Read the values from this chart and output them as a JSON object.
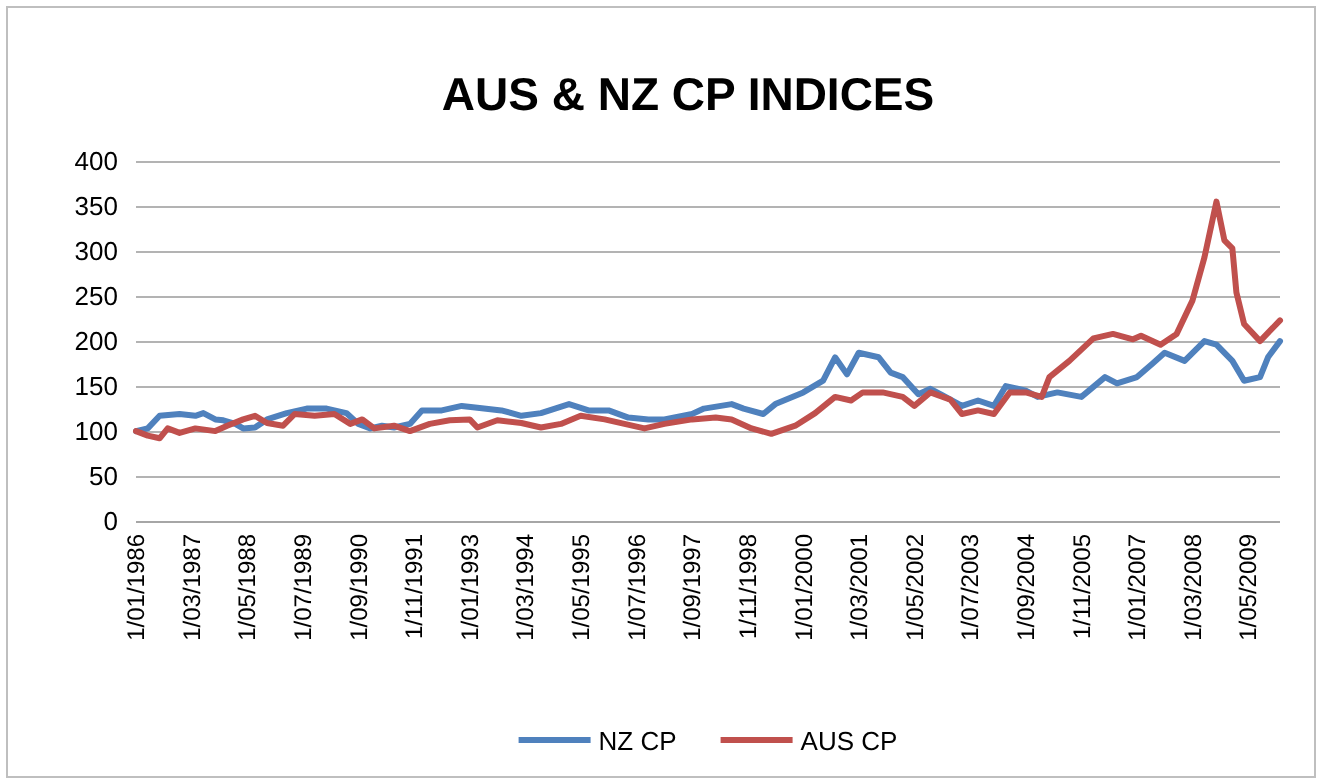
{
  "chart_data": {
    "type": "line",
    "title": "AUS & NZ CP INDICES",
    "xlim": [
      "1986-01",
      "2010-01"
    ],
    "xticks": [
      {
        "value": "1986-01",
        "label": "1/01/1986"
      },
      {
        "value": "1987-03",
        "label": "1/03/1987"
      },
      {
        "value": "1988-05",
        "label": "1/05/1988"
      },
      {
        "value": "1989-07",
        "label": "1/07/1989"
      },
      {
        "value": "1990-09",
        "label": "1/09/1990"
      },
      {
        "value": "1991-11",
        "label": "1/11/1991"
      },
      {
        "value": "1993-01",
        "label": "1/01/1993"
      },
      {
        "value": "1994-03",
        "label": "1/03/1994"
      },
      {
        "value": "1995-05",
        "label": "1/05/1995"
      },
      {
        "value": "1996-07",
        "label": "1/07/1996"
      },
      {
        "value": "1997-09",
        "label": "1/09/1997"
      },
      {
        "value": "1998-11",
        "label": "1/11/1998"
      },
      {
        "value": "2000-01",
        "label": "1/01/2000"
      },
      {
        "value": "2001-03",
        "label": "1/03/2001"
      },
      {
        "value": "2002-05",
        "label": "1/05/2002"
      },
      {
        "value": "2003-07",
        "label": "1/07/2003"
      },
      {
        "value": "2004-09",
        "label": "1/09/2004"
      },
      {
        "value": "2005-11",
        "label": "1/11/2005"
      },
      {
        "value": "2007-01",
        "label": "1/01/2007"
      },
      {
        "value": "2008-03",
        "label": "1/03/2008"
      },
      {
        "value": "2009-05",
        "label": "1/05/2009"
      }
    ],
    "ylim": [
      0,
      400
    ],
    "yticks": [
      0,
      50,
      100,
      150,
      200,
      250,
      300,
      350,
      400
    ],
    "grid": "y",
    "legend": "bottom",
    "marker": "none",
    "line_style": "solid",
    "series": [
      {
        "name": "NZ CP",
        "color": "#4f81bd",
        "x": [
          "1986-01",
          "1986-04",
          "1986-07",
          "1986-12",
          "1987-04",
          "1987-06",
          "1987-09",
          "1987-11",
          "1988-02",
          "1988-04",
          "1988-07",
          "1988-10",
          "1989-03",
          "1989-08",
          "1990-01",
          "1990-06",
          "1990-09",
          "1990-12",
          "1991-03",
          "1991-06",
          "1991-10",
          "1992-01",
          "1992-06",
          "1992-11",
          "1993-03",
          "1993-09",
          "1994-02",
          "1994-07",
          "1995-02",
          "1995-07",
          "1995-12",
          "1996-05",
          "1996-10",
          "1997-02",
          "1997-09",
          "1997-12",
          "1998-07",
          "1998-10",
          "1999-03",
          "1999-06",
          "2000-01",
          "2000-06",
          "2000-09",
          "2000-12",
          "2001-03",
          "2001-08",
          "2001-11",
          "2002-02",
          "2002-06",
          "2002-09",
          "2002-12",
          "2003-05",
          "2003-09",
          "2004-01",
          "2004-04",
          "2004-09",
          "2004-12",
          "2005-05",
          "2005-11",
          "2006-05",
          "2006-08",
          "2007-01",
          "2007-05",
          "2007-08",
          "2008-01",
          "2008-06",
          "2008-09",
          "2009-01",
          "2009-04",
          "2009-08",
          "2009-10",
          "2010-01"
        ],
        "values": [
          101,
          104,
          118,
          120,
          118,
          121,
          114,
          113,
          109,
          104,
          105,
          114,
          121,
          126,
          126,
          121,
          109,
          104,
          107,
          105,
          109,
          124,
          124,
          129,
          127,
          124,
          118,
          121,
          131,
          124,
          124,
          116,
          114,
          114,
          120,
          126,
          131,
          126,
          120,
          131,
          144,
          157,
          183,
          164,
          188,
          183,
          166,
          161,
          142,
          148,
          141,
          129,
          135,
          129,
          151,
          146,
          139,
          144,
          139,
          161,
          154,
          161,
          176,
          188,
          179,
          201,
          197,
          179,
          157,
          161,
          183,
          201
        ]
      },
      {
        "name": "AUS CP",
        "color": "#c0504d",
        "x": [
          "1986-01",
          "1986-04",
          "1986-07",
          "1986-09",
          "1986-12",
          "1987-04",
          "1987-09",
          "1987-12",
          "1988-04",
          "1988-07",
          "1988-10",
          "1989-02",
          "1989-05",
          "1989-10",
          "1990-03",
          "1990-07",
          "1990-10",
          "1991-01",
          "1991-06",
          "1991-10",
          "1992-03",
          "1992-08",
          "1993-01",
          "1993-03",
          "1993-08",
          "1994-02",
          "1994-07",
          "1994-12",
          "1995-05",
          "1995-11",
          "1996-04",
          "1996-09",
          "1997-02",
          "1997-09",
          "1998-03",
          "1998-07",
          "1998-12",
          "1999-05",
          "1999-11",
          "2000-04",
          "2000-09",
          "2001-01",
          "2001-04",
          "2001-09",
          "2002-02",
          "2002-05",
          "2002-09",
          "2003-02",
          "2003-05",
          "2003-09",
          "2004-01",
          "2004-05",
          "2004-09",
          "2005-01",
          "2005-03",
          "2005-08",
          "2006-02",
          "2006-07",
          "2006-12",
          "2007-02",
          "2007-07",
          "2007-11",
          "2008-03",
          "2008-06",
          "2008-09",
          "2008-11",
          "2009-01",
          "2009-02",
          "2009-04",
          "2009-08",
          "2010-01"
        ],
        "values": [
          101,
          96,
          93,
          104,
          99,
          104,
          101,
          107,
          114,
          118,
          110,
          107,
          120,
          118,
          120,
          109,
          114,
          104,
          107,
          101,
          109,
          113,
          114,
          105,
          113,
          110,
          105,
          109,
          118,
          114,
          109,
          104,
          109,
          114,
          116,
          114,
          104,
          98,
          107,
          121,
          139,
          135,
          144,
          144,
          139,
          129,
          144,
          136,
          120,
          124,
          120,
          144,
          144,
          139,
          161,
          179,
          204,
          209,
          203,
          207,
          197,
          209,
          246,
          294,
          356,
          313,
          304,
          255,
          220,
          201,
          224
        ]
      }
    ]
  }
}
